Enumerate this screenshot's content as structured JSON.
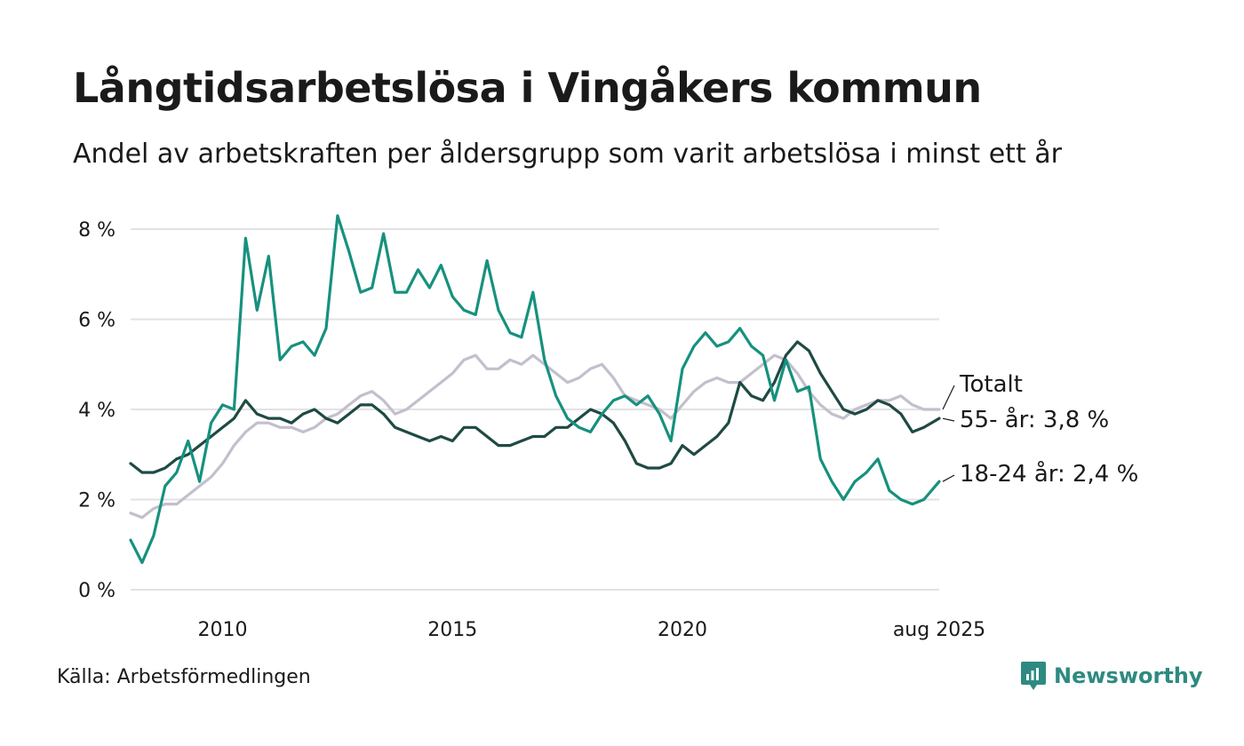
{
  "header": {
    "title": "Långtidsarbetslösa i Vingåkers kommun",
    "subtitle": "Andel av arbetskraften per åldersgrupp som varit arbetslösa i minst ett år"
  },
  "footer": {
    "source": "Källa: Arbetsförmedlingen",
    "brand": "Newsworthy"
  },
  "colors": {
    "totalt": "#c4bfcc",
    "age55": "#1f4a44",
    "age18_24": "#16917e",
    "grid": "#e2e2e6",
    "brand": "#2e8a80"
  },
  "chart_data": {
    "type": "line",
    "title": "Långtidsarbetslösa i Vingåkers kommun",
    "subtitle": "Andel av arbetskraften per åldersgrupp som varit arbetslösa i minst ett år",
    "xlabel": "",
    "ylabel": "",
    "xlim": [
      "2008-01",
      "2025-08"
    ],
    "ylim": [
      0,
      8.5
    ],
    "y_ticks": [
      0,
      2,
      4,
      6,
      8
    ],
    "y_tick_labels": [
      "0 %",
      "2 %",
      "4 %",
      "6 %",
      "8 %"
    ],
    "x_ticks": [
      "2010-01",
      "2015-01",
      "2020-01",
      "2025-08"
    ],
    "x_tick_labels": [
      "2010",
      "2015",
      "2020",
      "aug 2025"
    ],
    "grid": "horizontal",
    "legend": "direct labels at right end",
    "series": [
      {
        "name": "Totalt",
        "end_label": "Totalt",
        "color": "#c4bfcc",
        "points": [
          [
            "2008-01",
            1.7
          ],
          [
            "2008-04",
            1.6
          ],
          [
            "2008-07",
            1.8
          ],
          [
            "2008-10",
            1.9
          ],
          [
            "2009-01",
            1.9
          ],
          [
            "2009-04",
            2.1
          ],
          [
            "2009-07",
            2.3
          ],
          [
            "2009-10",
            2.5
          ],
          [
            "2010-01",
            2.8
          ],
          [
            "2010-04",
            3.2
          ],
          [
            "2010-07",
            3.5
          ],
          [
            "2010-10",
            3.7
          ],
          [
            "2011-01",
            3.7
          ],
          [
            "2011-04",
            3.6
          ],
          [
            "2011-07",
            3.6
          ],
          [
            "2011-10",
            3.5
          ],
          [
            "2012-01",
            3.6
          ],
          [
            "2012-04",
            3.8
          ],
          [
            "2012-07",
            3.9
          ],
          [
            "2012-10",
            4.1
          ],
          [
            "2013-01",
            4.3
          ],
          [
            "2013-04",
            4.4
          ],
          [
            "2013-07",
            4.2
          ],
          [
            "2013-10",
            3.9
          ],
          [
            "2014-01",
            4.0
          ],
          [
            "2014-04",
            4.2
          ],
          [
            "2014-07",
            4.4
          ],
          [
            "2014-10",
            4.6
          ],
          [
            "2015-01",
            4.8
          ],
          [
            "2015-04",
            5.1
          ],
          [
            "2015-07",
            5.2
          ],
          [
            "2015-10",
            4.9
          ],
          [
            "2016-01",
            4.9
          ],
          [
            "2016-04",
            5.1
          ],
          [
            "2016-07",
            5.0
          ],
          [
            "2016-10",
            5.2
          ],
          [
            "2017-01",
            5.0
          ],
          [
            "2017-04",
            4.8
          ],
          [
            "2017-07",
            4.6
          ],
          [
            "2017-10",
            4.7
          ],
          [
            "2018-01",
            4.9
          ],
          [
            "2018-04",
            5.0
          ],
          [
            "2018-07",
            4.7
          ],
          [
            "2018-10",
            4.3
          ],
          [
            "2019-01",
            4.2
          ],
          [
            "2019-04",
            4.1
          ],
          [
            "2019-07",
            4.0
          ],
          [
            "2019-10",
            3.8
          ],
          [
            "2020-01",
            4.1
          ],
          [
            "2020-04",
            4.4
          ],
          [
            "2020-07",
            4.6
          ],
          [
            "2020-10",
            4.7
          ],
          [
            "2021-01",
            4.6
          ],
          [
            "2021-04",
            4.6
          ],
          [
            "2021-07",
            4.8
          ],
          [
            "2021-10",
            5.0
          ],
          [
            "2022-01",
            5.2
          ],
          [
            "2022-04",
            5.1
          ],
          [
            "2022-07",
            4.8
          ],
          [
            "2022-10",
            4.4
          ],
          [
            "2023-01",
            4.1
          ],
          [
            "2023-04",
            3.9
          ],
          [
            "2023-07",
            3.8
          ],
          [
            "2023-10",
            4.0
          ],
          [
            "2024-01",
            4.1
          ],
          [
            "2024-04",
            4.2
          ],
          [
            "2024-07",
            4.2
          ],
          [
            "2024-10",
            4.3
          ],
          [
            "2025-01",
            4.1
          ],
          [
            "2025-04",
            4.0
          ],
          [
            "2025-08",
            4.0
          ]
        ]
      },
      {
        "name": "55- år",
        "end_label": "55- år: 3,8 %",
        "color": "#1f4a44",
        "points": [
          [
            "2008-01",
            2.8
          ],
          [
            "2008-04",
            2.6
          ],
          [
            "2008-07",
            2.6
          ],
          [
            "2008-10",
            2.7
          ],
          [
            "2009-01",
            2.9
          ],
          [
            "2009-04",
            3.0
          ],
          [
            "2009-07",
            3.2
          ],
          [
            "2009-10",
            3.4
          ],
          [
            "2010-01",
            3.6
          ],
          [
            "2010-04",
            3.8
          ],
          [
            "2010-07",
            4.2
          ],
          [
            "2010-10",
            3.9
          ],
          [
            "2011-01",
            3.8
          ],
          [
            "2011-04",
            3.8
          ],
          [
            "2011-07",
            3.7
          ],
          [
            "2011-10",
            3.9
          ],
          [
            "2012-01",
            4.0
          ],
          [
            "2012-04",
            3.8
          ],
          [
            "2012-07",
            3.7
          ],
          [
            "2012-10",
            3.9
          ],
          [
            "2013-01",
            4.1
          ],
          [
            "2013-04",
            4.1
          ],
          [
            "2013-07",
            3.9
          ],
          [
            "2013-10",
            3.6
          ],
          [
            "2014-01",
            3.5
          ],
          [
            "2014-04",
            3.4
          ],
          [
            "2014-07",
            3.3
          ],
          [
            "2014-10",
            3.4
          ],
          [
            "2015-01",
            3.3
          ],
          [
            "2015-04",
            3.6
          ],
          [
            "2015-07",
            3.6
          ],
          [
            "2015-10",
            3.4
          ],
          [
            "2016-01",
            3.2
          ],
          [
            "2016-04",
            3.2
          ],
          [
            "2016-07",
            3.3
          ],
          [
            "2016-10",
            3.4
          ],
          [
            "2017-01",
            3.4
          ],
          [
            "2017-04",
            3.6
          ],
          [
            "2017-07",
            3.6
          ],
          [
            "2017-10",
            3.8
          ],
          [
            "2018-01",
            4.0
          ],
          [
            "2018-04",
            3.9
          ],
          [
            "2018-07",
            3.7
          ],
          [
            "2018-10",
            3.3
          ],
          [
            "2019-01",
            2.8
          ],
          [
            "2019-04",
            2.7
          ],
          [
            "2019-07",
            2.7
          ],
          [
            "2019-10",
            2.8
          ],
          [
            "2020-01",
            3.2
          ],
          [
            "2020-04",
            3.0
          ],
          [
            "2020-07",
            3.2
          ],
          [
            "2020-10",
            3.4
          ],
          [
            "2021-01",
            3.7
          ],
          [
            "2021-04",
            4.6
          ],
          [
            "2021-07",
            4.3
          ],
          [
            "2021-10",
            4.2
          ],
          [
            "2022-01",
            4.6
          ],
          [
            "2022-04",
            5.2
          ],
          [
            "2022-07",
            5.5
          ],
          [
            "2022-10",
            5.3
          ],
          [
            "2023-01",
            4.8
          ],
          [
            "2023-04",
            4.4
          ],
          [
            "2023-07",
            4.0
          ],
          [
            "2023-10",
            3.9
          ],
          [
            "2024-01",
            4.0
          ],
          [
            "2024-04",
            4.2
          ],
          [
            "2024-07",
            4.1
          ],
          [
            "2024-10",
            3.9
          ],
          [
            "2025-01",
            3.5
          ],
          [
            "2025-04",
            3.6
          ],
          [
            "2025-08",
            3.8
          ]
        ]
      },
      {
        "name": "18-24 år",
        "end_label": "18-24 år: 2,4 %",
        "color": "#16917e",
        "points": [
          [
            "2008-01",
            1.1
          ],
          [
            "2008-04",
            0.6
          ],
          [
            "2008-07",
            1.2
          ],
          [
            "2008-10",
            2.3
          ],
          [
            "2009-01",
            2.6
          ],
          [
            "2009-04",
            3.3
          ],
          [
            "2009-07",
            2.4
          ],
          [
            "2009-10",
            3.7
          ],
          [
            "2010-01",
            4.1
          ],
          [
            "2010-04",
            4.0
          ],
          [
            "2010-07",
            7.8
          ],
          [
            "2010-10",
            6.2
          ],
          [
            "2011-01",
            7.4
          ],
          [
            "2011-04",
            5.1
          ],
          [
            "2011-07",
            5.4
          ],
          [
            "2011-10",
            5.5
          ],
          [
            "2012-01",
            5.2
          ],
          [
            "2012-04",
            5.8
          ],
          [
            "2012-07",
            8.3
          ],
          [
            "2012-10",
            7.5
          ],
          [
            "2013-01",
            6.6
          ],
          [
            "2013-04",
            6.7
          ],
          [
            "2013-07",
            7.9
          ],
          [
            "2013-10",
            6.6
          ],
          [
            "2014-01",
            6.6
          ],
          [
            "2014-04",
            7.1
          ],
          [
            "2014-07",
            6.7
          ],
          [
            "2014-10",
            7.2
          ],
          [
            "2015-01",
            6.5
          ],
          [
            "2015-04",
            6.2
          ],
          [
            "2015-07",
            6.1
          ],
          [
            "2015-10",
            7.3
          ],
          [
            "2016-01",
            6.2
          ],
          [
            "2016-04",
            5.7
          ],
          [
            "2016-07",
            5.6
          ],
          [
            "2016-10",
            6.6
          ],
          [
            "2017-01",
            5.1
          ],
          [
            "2017-04",
            4.3
          ],
          [
            "2017-07",
            3.8
          ],
          [
            "2017-10",
            3.6
          ],
          [
            "2018-01",
            3.5
          ],
          [
            "2018-04",
            3.9
          ],
          [
            "2018-07",
            4.2
          ],
          [
            "2018-10",
            4.3
          ],
          [
            "2019-01",
            4.1
          ],
          [
            "2019-04",
            4.3
          ],
          [
            "2019-07",
            3.9
          ],
          [
            "2019-10",
            3.3
          ],
          [
            "2020-01",
            4.9
          ],
          [
            "2020-04",
            5.4
          ],
          [
            "2020-07",
            5.7
          ],
          [
            "2020-10",
            5.4
          ],
          [
            "2021-01",
            5.5
          ],
          [
            "2021-04",
            5.8
          ],
          [
            "2021-07",
            5.4
          ],
          [
            "2021-10",
            5.2
          ],
          [
            "2022-01",
            4.2
          ],
          [
            "2022-04",
            5.1
          ],
          [
            "2022-07",
            4.4
          ],
          [
            "2022-10",
            4.5
          ],
          [
            "2023-01",
            2.9
          ],
          [
            "2023-04",
            2.4
          ],
          [
            "2023-07",
            2.0
          ],
          [
            "2023-10",
            2.4
          ],
          [
            "2024-01",
            2.6
          ],
          [
            "2024-04",
            2.9
          ],
          [
            "2024-07",
            2.2
          ],
          [
            "2024-10",
            2.0
          ],
          [
            "2025-01",
            1.9
          ],
          [
            "2025-04",
            2.0
          ],
          [
            "2025-08",
            2.4
          ]
        ]
      }
    ]
  }
}
